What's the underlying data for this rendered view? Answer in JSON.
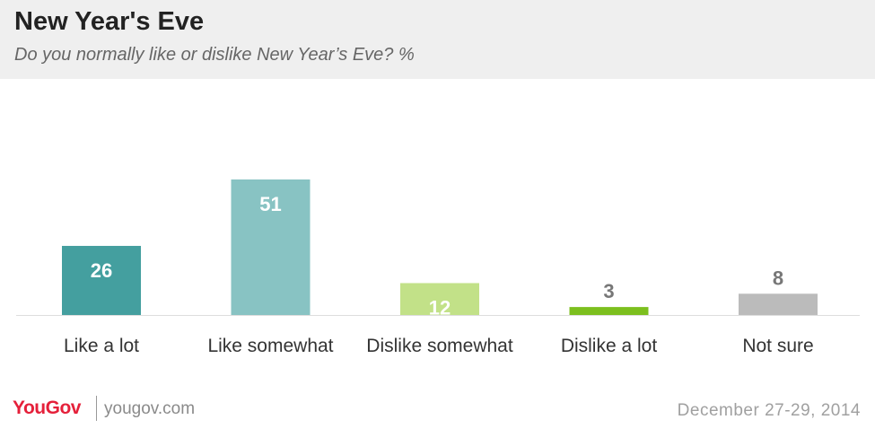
{
  "header": {
    "title": "New Year's Eve",
    "subtitle": "Do you normally like or dislike New Year’s Eve? %"
  },
  "footer": {
    "brand": "YouGov",
    "site": "yougov.com",
    "date": "December 27-29, 2014"
  },
  "colors": {
    "header_bg": "#efefef",
    "brand_red": "#e5203a",
    "baseline": "#dddddd",
    "label_light": "#ffffff",
    "label_dark": "#777777"
  },
  "chart_data": {
    "type": "bar",
    "title": "New Year's Eve",
    "subtitle": "Do you normally like or dislike New Year’s Eve? %",
    "xlabel": "",
    "ylabel": "",
    "ylim": [
      0,
      51
    ],
    "grid": false,
    "legend": "none",
    "categories": [
      "Like a lot",
      "Like somewhat",
      "Dislike somewhat",
      "Dislike a lot",
      "Not sure"
    ],
    "values": [
      26,
      51,
      12,
      3,
      8
    ],
    "bar_colors": [
      "#449f9f",
      "#88c3c3",
      "#c2e188",
      "#7cbf1e",
      "#bbbbbb"
    ],
    "label_inside": [
      true,
      true,
      true,
      false,
      false
    ]
  }
}
